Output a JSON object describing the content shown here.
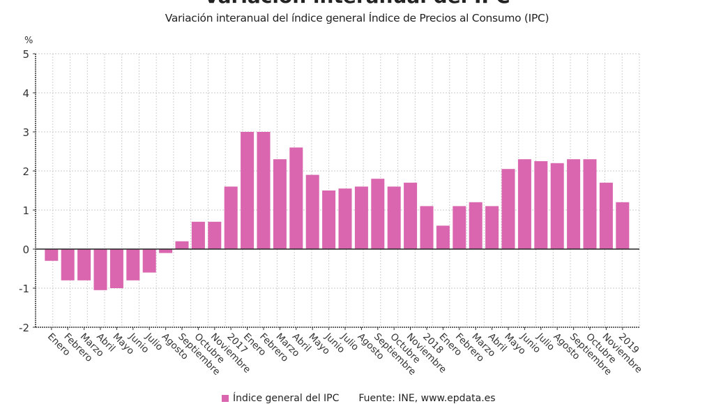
{
  "chart_data": {
    "type": "bar",
    "title": "Variación interanual del IPC",
    "subtitle": "Variación interanual del índice general Índice de Precios al Consumo (IPC)",
    "ylabel": "%",
    "xlabel": "",
    "ylim": [
      -2,
      5
    ],
    "yticks": [
      "5",
      "4",
      "3",
      "2",
      "1",
      "0",
      "-1",
      "-2"
    ],
    "ytick_values": [
      5,
      4,
      3,
      2,
      1,
      0,
      -1,
      -2
    ],
    "grid": true,
    "bar_color": "#D966AE",
    "categories": [
      "Enero",
      "Febrero",
      "Marzo",
      "Abril",
      "Mayo",
      "Junio",
      "Julio",
      "Agosto",
      "Septiembre",
      "Octubre",
      "Noviembre",
      "2017",
      "Enero",
      "Febrero",
      "Marzo",
      "Abril",
      "Mayo",
      "Junio",
      "Julio",
      "Agosto",
      "Septiembre",
      "Octubre",
      "Noviembre",
      "2018",
      "Enero",
      "Febrero",
      "Marzo",
      "Abril",
      "Mayo",
      "Junio",
      "Julio",
      "Agosto",
      "Septiembre",
      "Octubre",
      "Noviembre",
      "2019"
    ],
    "series": [
      {
        "name": "Índice general del IPC",
        "values": [
          -0.3,
          -0.8,
          -0.8,
          -1.05,
          -1.0,
          -0.8,
          -0.6,
          -0.1,
          0.2,
          0.7,
          0.7,
          1.6,
          3.0,
          3.0,
          2.3,
          2.6,
          1.9,
          1.5,
          1.55,
          1.6,
          1.8,
          1.6,
          1.7,
          1.1,
          0.6,
          1.1,
          1.2,
          1.1,
          2.05,
          2.3,
          2.25,
          2.2,
          2.3,
          2.3,
          1.7,
          1.2
        ]
      }
    ],
    "legend": {
      "position": "bottom",
      "label": "Índice general del IPC",
      "source": "Fuente: INE, www.epdata.es"
    }
  }
}
